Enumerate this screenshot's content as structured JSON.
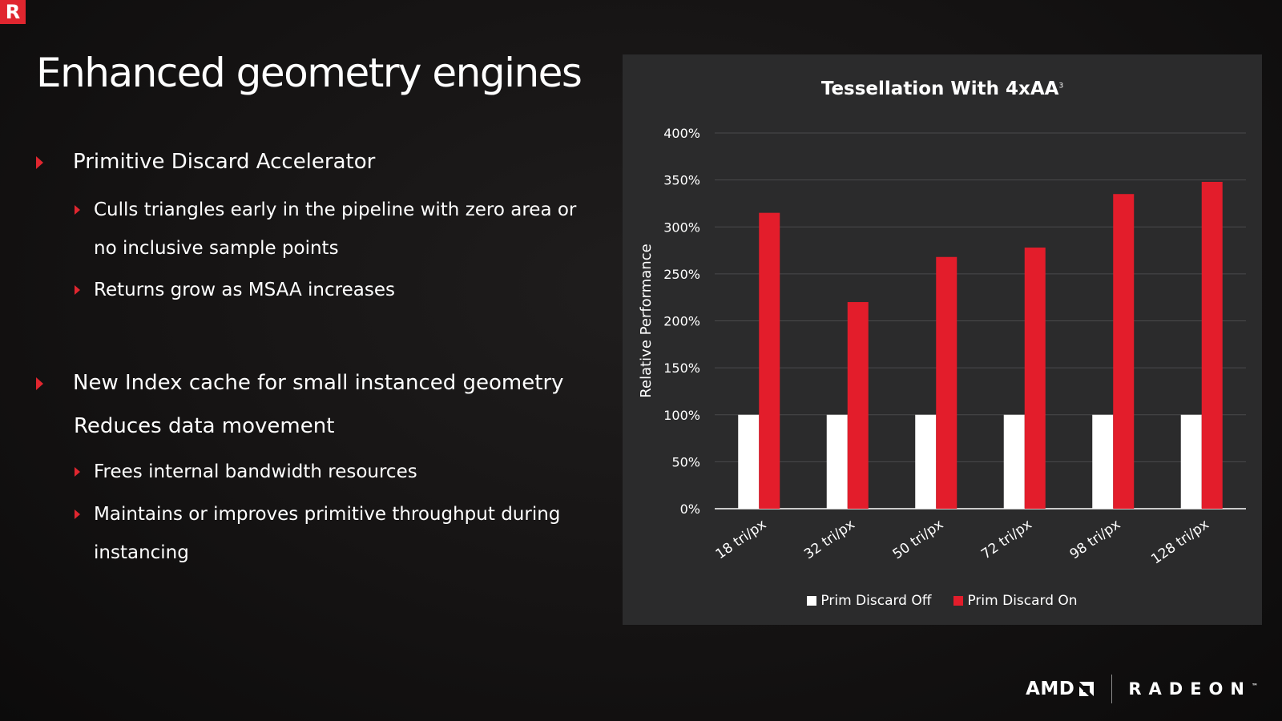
{
  "slide": {
    "title": "Enhanced geometry engines",
    "logo_letter": "R",
    "bullets": {
      "b1": "Primitive Discard Accelerator",
      "b1_1_line1": "Culls triangles early in the pipeline with zero area or",
      "b1_1_line2": "no inclusive sample points",
      "b1_2": "Returns grow as MSAA increases",
      "b2": "New Index cache for small instanced geometry",
      "b2_line2": "Reduces data movement",
      "b2_1": "Frees internal bandwidth resources",
      "b2_2_line1": "Maintains or  improves primitive throughput during",
      "b2_2_line2": "instancing"
    },
    "footer": {
      "amd": "AMD",
      "radeon": "RADEON",
      "tm": "™"
    },
    "colors": {
      "accent": "#e0262f",
      "panel": "#2b2b2c",
      "series_off": "#ffffff",
      "series_on": "#e31d2b"
    }
  },
  "chart_data": {
    "type": "bar",
    "title": "Tessellation With 4xAA",
    "title_superscript": "3",
    "xlabel": "",
    "ylabel": "Relative Performance",
    "categories": [
      "18 tri/px",
      "32 tri/px",
      "50 tri/px",
      "72 tri/px",
      "98 tri/px",
      "128 tri/px"
    ],
    "series": [
      {
        "name": "Prim Discard Off",
        "color": "#ffffff",
        "values": [
          100,
          100,
          100,
          100,
          100,
          100
        ]
      },
      {
        "name": "Prim Discard On",
        "color": "#e31d2b",
        "values": [
          315,
          220,
          268,
          278,
          335,
          348
        ]
      }
    ],
    "ylim": [
      0,
      400
    ],
    "yticks": [
      "0%",
      "50%",
      "100%",
      "150%",
      "200%",
      "250%",
      "300%",
      "350%",
      "400%"
    ],
    "grid": true,
    "legend_position": "bottom"
  }
}
